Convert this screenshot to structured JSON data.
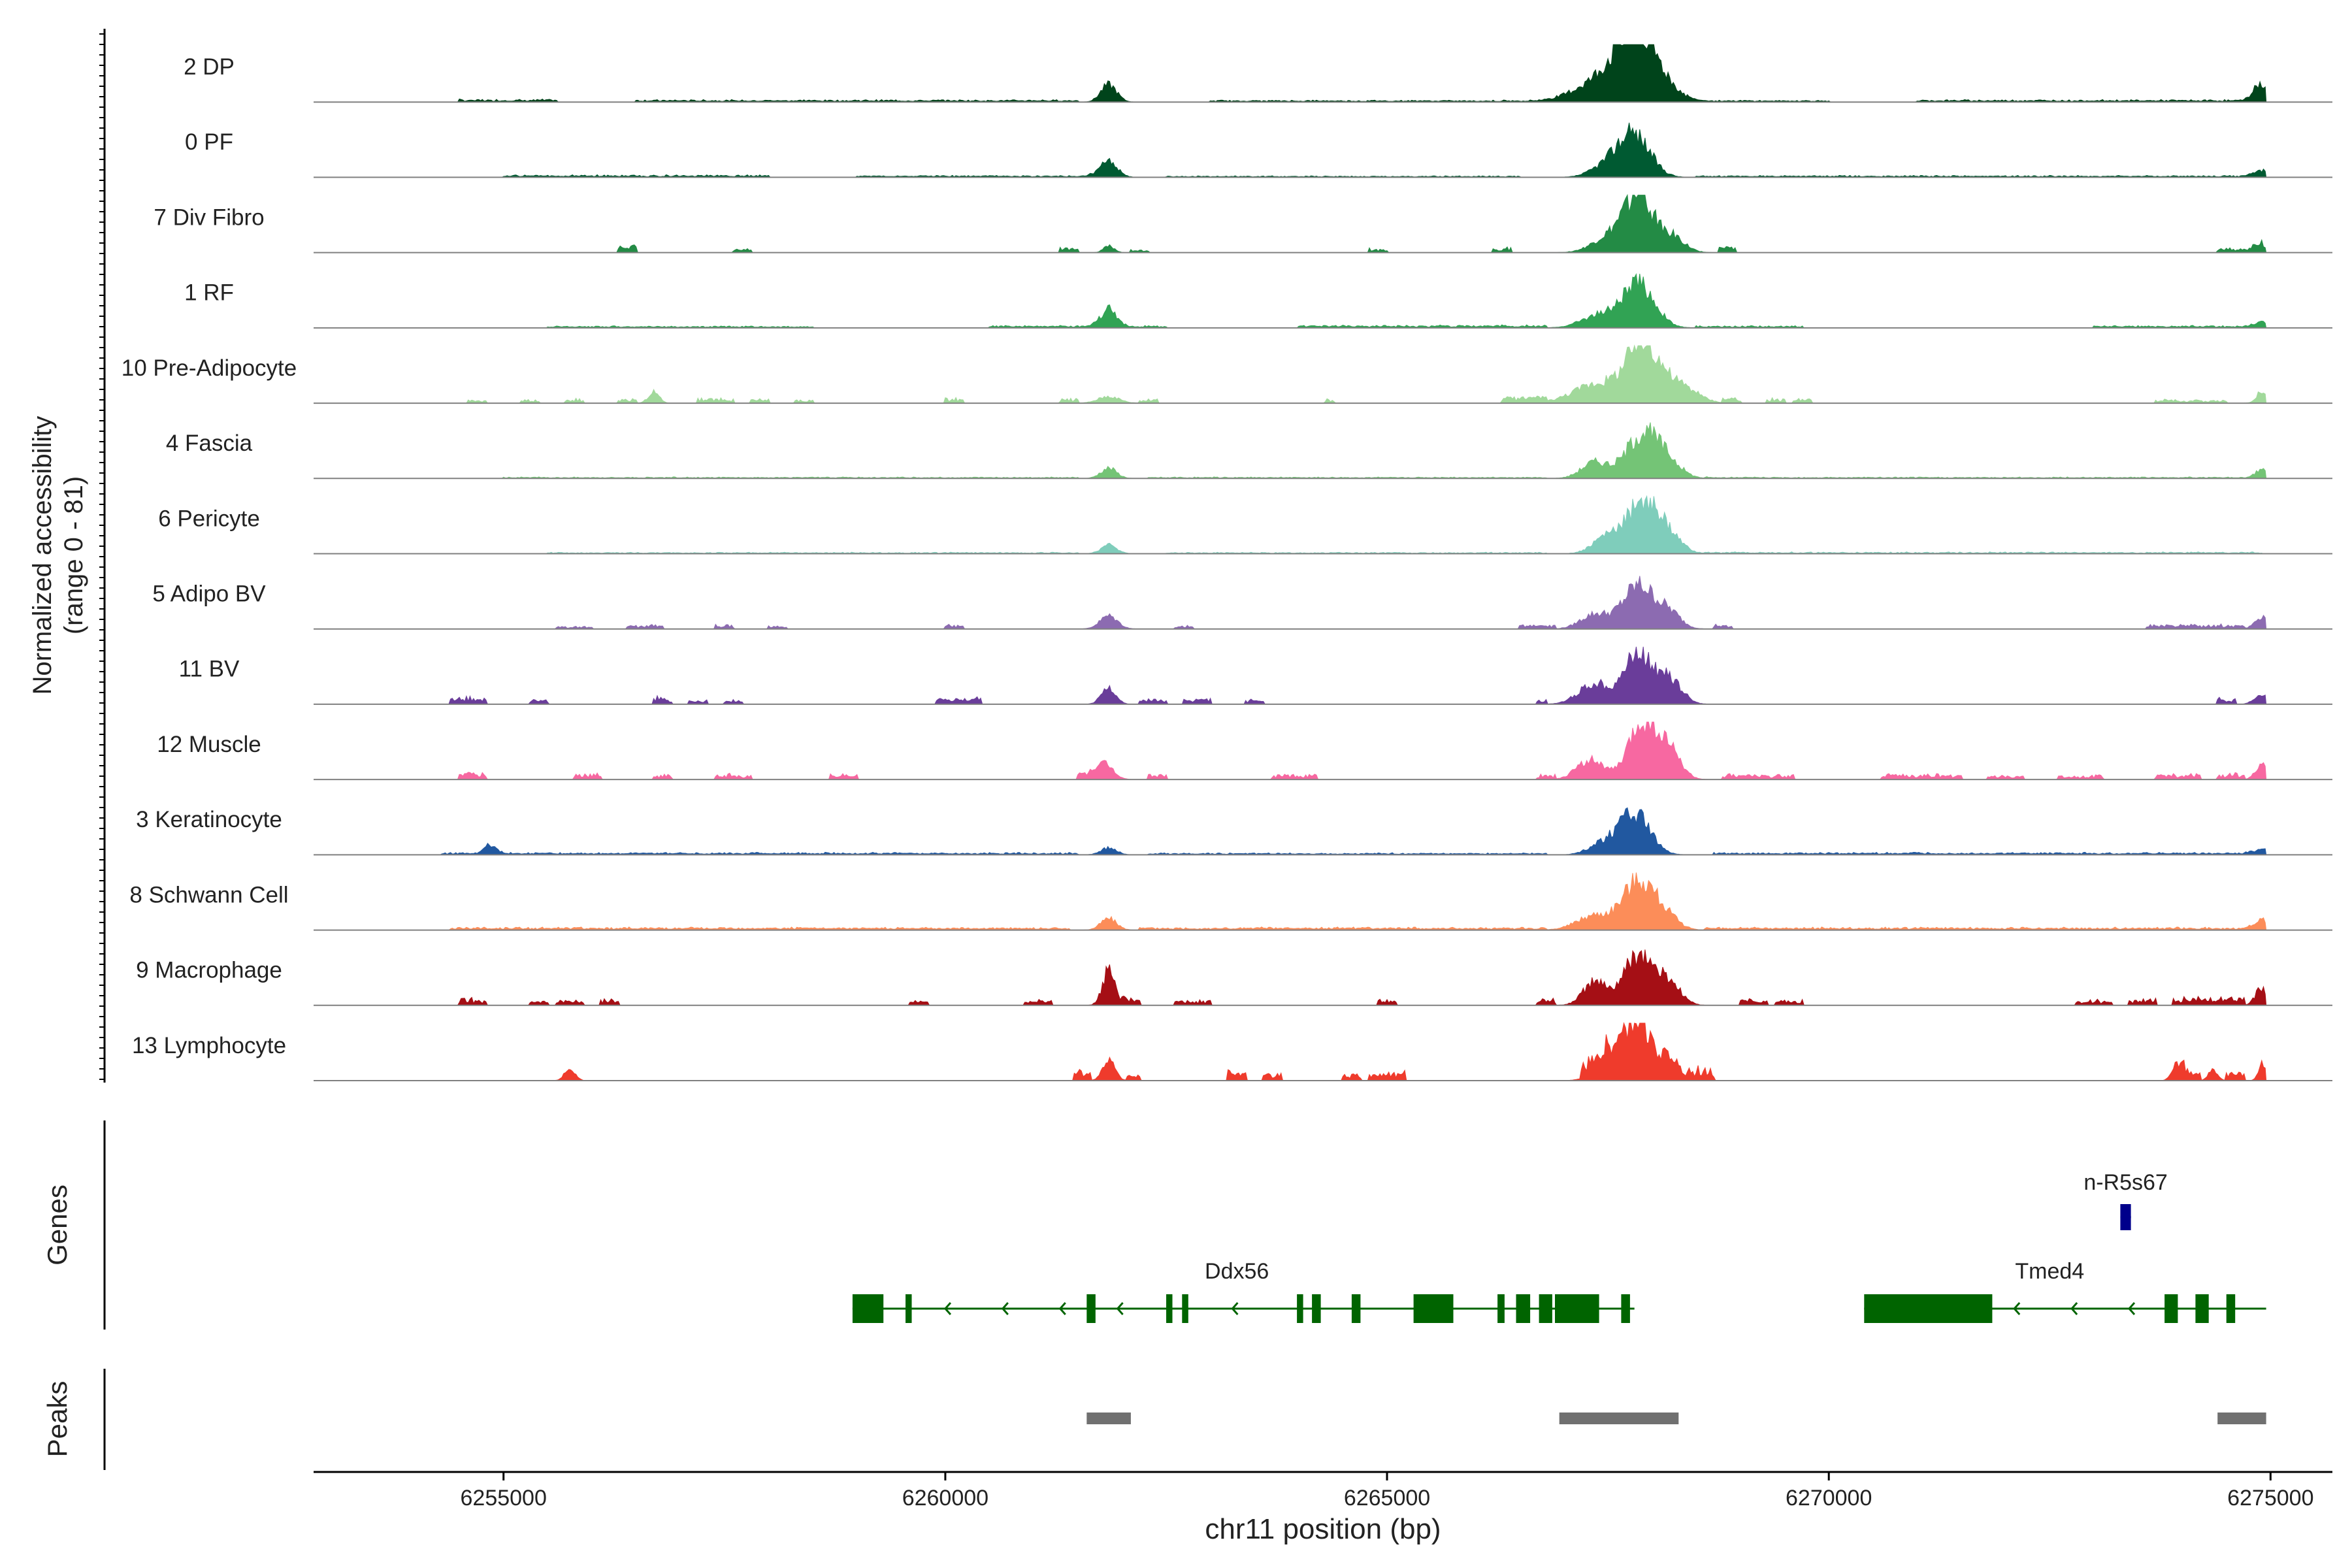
{
  "chart_data": {
    "type": "area",
    "title": "",
    "ylabel_line1": "Normalized accessibility",
    "ylabel_line2": "(range 0 - 81)",
    "ylim": [
      0,
      81
    ],
    "xlabel": "chr11 position (bp)",
    "xlim": [
      6252850,
      6275700
    ],
    "region_end": 6274950,
    "xticks": [
      6255000,
      6260000,
      6265000,
      6270000,
      6275000
    ],
    "xtick_labels": [
      "6255000",
      "6260000",
      "6265000",
      "6270000",
      "6275000"
    ],
    "tracks": [
      {
        "label": "2 DP",
        "color": "#00441b",
        "peaks": [
          [
            6261850,
            0.3,
            90
          ],
          [
            6267350,
            0.28,
            260
          ],
          [
            6267750,
            0.58,
            220
          ],
          [
            6267900,
            0.7,
            240
          ],
          [
            6274900,
            0.3,
            90
          ]
        ],
        "islands": [
          [
            6254500,
            6255600,
            0.03
          ],
          [
            6256500,
            6261500,
            0.025
          ],
          [
            6263000,
            6270000,
            0.02
          ],
          [
            6271000,
            6274900,
            0.025
          ]
        ]
      },
      {
        "label": "0 PF",
        "color": "#005a32",
        "peaks": [
          [
            6261850,
            0.28,
            100
          ],
          [
            6267800,
            0.72,
            180
          ],
          [
            6267500,
            0.2,
            180
          ],
          [
            6274900,
            0.12,
            90
          ]
        ],
        "islands": [
          [
            6255000,
            6258000,
            0.025
          ],
          [
            6259000,
            6261700,
            0.02
          ],
          [
            6262500,
            6266500,
            0.015
          ],
          [
            6268500,
            6274800,
            0.02
          ]
        ]
      },
      {
        "label": "7 Div Fibro",
        "color": "#238b45",
        "peaks": [
          [
            6261850,
            0.12,
            60
          ],
          [
            6267550,
            0.3,
            200
          ],
          [
            6267850,
            0.95,
            150
          ],
          [
            6268200,
            0.3,
            150
          ],
          [
            6274900,
            0.12,
            80
          ]
        ],
        "islands": [
          [
            6256300,
            6256500,
            0.08
          ],
          [
            6257600,
            6257800,
            0.05
          ],
          [
            6261300,
            6261500,
            0.06
          ],
          [
            6262100,
            6262300,
            0.04
          ],
          [
            6264800,
            6265000,
            0.05
          ],
          [
            6266200,
            6266400,
            0.06
          ],
          [
            6268750,
            6268950,
            0.07
          ],
          [
            6274400,
            6274900,
            0.05
          ]
        ]
      },
      {
        "label": "1 RF",
        "color": "#31a354",
        "peaks": [
          [
            6261850,
            0.3,
            90
          ],
          [
            6267850,
            0.75,
            180
          ],
          [
            6267400,
            0.22,
            200
          ],
          [
            6274900,
            0.1,
            80
          ]
        ],
        "islands": [
          [
            6255500,
            6258500,
            0.02
          ],
          [
            6260500,
            6262500,
            0.025
          ],
          [
            6264000,
            6266800,
            0.03
          ],
          [
            6268500,
            6269700,
            0.025
          ],
          [
            6273000,
            6274800,
            0.025
          ]
        ]
      },
      {
        "label": "10 Pre-Adipocyte",
        "color": "#a1d99b",
        "peaks": [
          [
            6256700,
            0.2,
            60
          ],
          [
            6261850,
            0.12,
            120
          ],
          [
            6267400,
            0.35,
            280
          ],
          [
            6267900,
            1.0,
            180
          ],
          [
            6268300,
            0.3,
            200
          ],
          [
            6274900,
            0.2,
            60
          ]
        ],
        "islands": [
          [
            6254600,
            6254800,
            0.04
          ],
          [
            6255200,
            6255400,
            0.04
          ],
          [
            6255700,
            6255900,
            0.05
          ],
          [
            6256300,
            6256500,
            0.05
          ],
          [
            6257200,
            6257600,
            0.06
          ],
          [
            6257800,
            6258000,
            0.05
          ],
          [
            6258300,
            6258500,
            0.04
          ],
          [
            6260000,
            6260200,
            0.06
          ],
          [
            6261300,
            6261500,
            0.05
          ],
          [
            6262200,
            6262400,
            0.05
          ],
          [
            6264300,
            6264400,
            0.06
          ],
          [
            6266300,
            6266800,
            0.08
          ],
          [
            6268800,
            6269000,
            0.06
          ],
          [
            6269300,
            6269500,
            0.06
          ],
          [
            6269600,
            6269800,
            0.05
          ],
          [
            6273700,
            6274500,
            0.04
          ]
        ]
      },
      {
        "label": "4 Fascia",
        "color": "#74c476",
        "peaks": [
          [
            6261850,
            0.18,
            90
          ],
          [
            6267350,
            0.28,
            150
          ],
          [
            6267900,
            0.78,
            190
          ],
          [
            6268200,
            0.2,
            150
          ],
          [
            6274900,
            0.16,
            70
          ]
        ],
        "islands": [
          [
            6255000,
            6261500,
            0.015
          ],
          [
            6262300,
            6266800,
            0.015
          ],
          [
            6268600,
            6274800,
            0.015
          ]
        ]
      },
      {
        "label": "6 Pericyte",
        "color": "#7fcdbb",
        "peaks": [
          [
            6261850,
            0.15,
            90
          ],
          [
            6267500,
            0.3,
            160
          ],
          [
            6267900,
            0.95,
            170
          ],
          [
            6268200,
            0.25,
            150
          ]
        ],
        "islands": [
          [
            6255500,
            6261500,
            0.015
          ],
          [
            6262500,
            6266800,
            0.015
          ],
          [
            6268600,
            6274900,
            0.018
          ]
        ]
      },
      {
        "label": "5 Adipo BV",
        "color": "#8c6bb1",
        "peaks": [
          [
            6261850,
            0.22,
            100
          ],
          [
            6267350,
            0.25,
            160
          ],
          [
            6267850,
            0.75,
            180
          ],
          [
            6268200,
            0.25,
            130
          ],
          [
            6274900,
            0.2,
            80
          ]
        ],
        "islands": [
          [
            6255600,
            6256000,
            0.03
          ],
          [
            6256400,
            6256800,
            0.05
          ],
          [
            6257400,
            6257600,
            0.05
          ],
          [
            6258000,
            6258200,
            0.04
          ],
          [
            6260000,
            6260200,
            0.05
          ],
          [
            6262600,
            6262800,
            0.04
          ],
          [
            6266500,
            6266900,
            0.06
          ],
          [
            6268700,
            6268900,
            0.05
          ],
          [
            6273600,
            6274700,
            0.05
          ]
        ]
      },
      {
        "label": "11 BV",
        "color": "#6a3d9a",
        "peaks": [
          [
            6261850,
            0.3,
            80
          ],
          [
            6267350,
            0.35,
            180
          ],
          [
            6267850,
            0.9,
            160
          ],
          [
            6268200,
            0.4,
            140
          ],
          [
            6274900,
            0.18,
            80
          ]
        ],
        "islands": [
          [
            6254400,
            6254800,
            0.08
          ],
          [
            6255300,
            6255500,
            0.07
          ],
          [
            6256700,
            6256900,
            0.08
          ],
          [
            6257100,
            6257300,
            0.06
          ],
          [
            6257500,
            6257700,
            0.06
          ],
          [
            6259900,
            6260400,
            0.08
          ],
          [
            6262200,
            6262500,
            0.06
          ],
          [
            6262700,
            6263000,
            0.07
          ],
          [
            6263400,
            6263600,
            0.06
          ],
          [
            6266700,
            6266800,
            0.05
          ],
          [
            6274400,
            6274600,
            0.08
          ]
        ]
      },
      {
        "label": "12 Muscle",
        "color": "#f768a1",
        "peaks": [
          [
            6261800,
            0.28,
            100
          ],
          [
            6267300,
            0.35,
            150
          ],
          [
            6267900,
            1.0,
            160
          ],
          [
            6268200,
            0.45,
            130
          ],
          [
            6274900,
            0.25,
            70
          ]
        ],
        "islands": [
          [
            6254500,
            6254800,
            0.07
          ],
          [
            6255800,
            6256100,
            0.07
          ],
          [
            6256700,
            6256900,
            0.06
          ],
          [
            6257400,
            6257800,
            0.06
          ],
          [
            6258700,
            6259000,
            0.06
          ],
          [
            6261500,
            6261700,
            0.07
          ],
          [
            6262300,
            6262500,
            0.06
          ],
          [
            6263700,
            6264200,
            0.06
          ],
          [
            6266700,
            6266900,
            0.06
          ],
          [
            6268800,
            6269600,
            0.06
          ],
          [
            6270600,
            6271500,
            0.06
          ],
          [
            6271800,
            6272200,
            0.05
          ],
          [
            6272600,
            6273100,
            0.05
          ],
          [
            6273700,
            6274200,
            0.06
          ],
          [
            6274400,
            6274700,
            0.07
          ]
        ]
      },
      {
        "label": "3 Keratinocyte",
        "color": "#2158a0",
        "peaks": [
          [
            6254850,
            0.15,
            70
          ],
          [
            6261850,
            0.12,
            90
          ],
          [
            6267450,
            0.2,
            160
          ],
          [
            6267800,
            0.72,
            170
          ],
          [
            6274900,
            0.1,
            80
          ]
        ],
        "islands": [
          [
            6254300,
            6261500,
            0.025
          ],
          [
            6262300,
            6266800,
            0.02
          ],
          [
            6268700,
            6274800,
            0.025
          ]
        ]
      },
      {
        "label": "8 Schwann Cell",
        "color": "#fc8d59",
        "peaks": [
          [
            6261850,
            0.2,
            90
          ],
          [
            6267350,
            0.25,
            200
          ],
          [
            6267850,
            0.85,
            180
          ],
          [
            6268150,
            0.2,
            150
          ],
          [
            6274900,
            0.18,
            80
          ]
        ],
        "islands": [
          [
            6254400,
            6261400,
            0.03
          ],
          [
            6262200,
            6266800,
            0.03
          ],
          [
            6268600,
            6274800,
            0.03
          ]
        ]
      },
      {
        "label": "9 Macrophage",
        "color": "#a50f15",
        "peaks": [
          [
            6261850,
            0.6,
            70
          ],
          [
            6267350,
            0.4,
            130
          ],
          [
            6267850,
            0.88,
            170
          ],
          [
            6268200,
            0.35,
            130
          ],
          [
            6274900,
            0.3,
            70
          ]
        ],
        "islands": [
          [
            6254500,
            6254800,
            0.08
          ],
          [
            6255300,
            6255500,
            0.06
          ],
          [
            6255600,
            6255900,
            0.07
          ],
          [
            6256100,
            6256300,
            0.08
          ],
          [
            6259600,
            6259800,
            0.06
          ],
          [
            6260900,
            6261200,
            0.07
          ],
          [
            6262000,
            6262200,
            0.08
          ],
          [
            6262600,
            6263000,
            0.06
          ],
          [
            6264900,
            6265100,
            0.06
          ],
          [
            6266700,
            6266900,
            0.08
          ],
          [
            6269000,
            6269300,
            0.07
          ],
          [
            6269400,
            6269700,
            0.06
          ],
          [
            6272800,
            6273200,
            0.06
          ],
          [
            6273400,
            6273700,
            0.07
          ],
          [
            6273900,
            6274700,
            0.1
          ]
        ]
      },
      {
        "label": "13 Lymphocyte",
        "color": "#ef3b2c",
        "peaks": [
          [
            6255750,
            0.2,
            60
          ],
          [
            6261850,
            0.35,
            70
          ],
          [
            6267550,
            0.5,
            160
          ],
          [
            6267850,
            1.0,
            140
          ],
          [
            6268200,
            0.4,
            110
          ],
          [
            6273950,
            0.3,
            60
          ],
          [
            6274350,
            0.2,
            50
          ],
          [
            6274900,
            0.3,
            40
          ]
        ],
        "islands": [
          [
            6261450,
            6261650,
            0.12
          ],
          [
            6262050,
            6262200,
            0.08
          ],
          [
            6263200,
            6263400,
            0.12
          ],
          [
            6263600,
            6263800,
            0.1
          ],
          [
            6264500,
            6264700,
            0.08
          ],
          [
            6264800,
            6265200,
            0.12
          ],
          [
            6267200,
            6267500,
            0.15
          ],
          [
            6268400,
            6268700,
            0.15
          ],
          [
            6274000,
            6274200,
            0.12
          ],
          [
            6274500,
            6274700,
            0.1
          ]
        ]
      }
    ],
    "genes_label": "Genes",
    "genes": [
      {
        "name": "Ddx56",
        "color": "#006400",
        "strand": "-",
        "start": 6258950,
        "end": 6267800,
        "exons": [
          [
            6258950,
            6259300
          ],
          [
            6259550,
            6259620
          ],
          [
            6261600,
            6261700
          ],
          [
            6262500,
            6262570
          ],
          [
            6262680,
            6262750
          ],
          [
            6263980,
            6264050
          ],
          [
            6264150,
            6264250
          ],
          [
            6264600,
            6264700
          ],
          [
            6265300,
            6265750
          ],
          [
            6266250,
            6266330
          ],
          [
            6266460,
            6266620
          ],
          [
            6266720,
            6266870
          ],
          [
            6266900,
            6267400
          ],
          [
            6267650,
            6267750
          ]
        ]
      },
      {
        "name": "Tmed4",
        "color": "#006400",
        "strand": "-",
        "start": 6270400,
        "end": 6274950,
        "exons": [
          [
            6270400,
            6271850
          ],
          [
            6273800,
            6273950
          ],
          [
            6274150,
            6274300
          ],
          [
            6274500,
            6274600
          ]
        ]
      },
      {
        "name": "n-R5s67",
        "color": "#00008b",
        "strand": "+",
        "start": 6273300,
        "end": 6273420,
        "exons": [
          [
            6273300,
            6273420
          ]
        ]
      }
    ],
    "peaks_label": "Peaks",
    "peak_regions": [
      [
        6261600,
        6262100
      ],
      [
        6266950,
        6268300
      ],
      [
        6274400,
        6274950
      ]
    ]
  }
}
